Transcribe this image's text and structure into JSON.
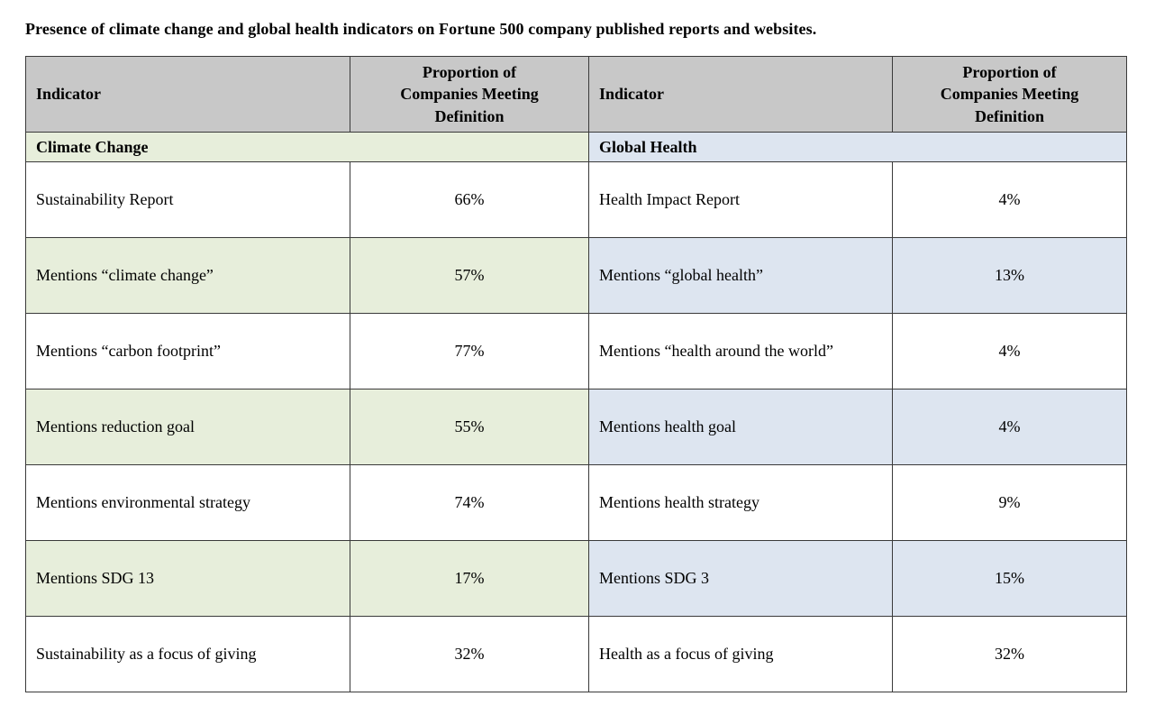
{
  "page_title": "Presence of climate change and global health indicators on Fortune 500 company published reports and websites.",
  "table": {
    "header": {
      "col1": "Indicator",
      "col2": "Proportion of Companies Meeting Definition",
      "col3": "Indicator",
      "col4": "Proportion of Companies Meeting Definition"
    },
    "section_left": "Climate Change",
    "section_right": "Global Health",
    "rows": [
      {
        "c1": "Sustainability Report",
        "c2": "66%",
        "c3": "Health Impact Report",
        "c4": "4%"
      },
      {
        "c1": "Mentions “climate change”",
        "c2": "57%",
        "c3": "Mentions “global health”",
        "c4": "13%"
      },
      {
        "c1": "Mentions “carbon footprint”",
        "c2": "77%",
        "c3": "Mentions “health around the world”",
        "c4": "4%"
      },
      {
        "c1": "Mentions reduction goal",
        "c2": "55%",
        "c3": "Mentions health goal",
        "c4": "4%"
      },
      {
        "c1": "Mentions environmental strategy",
        "c2": "74%",
        "c3": "Mentions health strategy",
        "c4": "9%"
      },
      {
        "c1": "Mentions SDG 13",
        "c2": "17%",
        "c3": "Mentions SDG 3",
        "c4": "15%"
      },
      {
        "c1": "Sustainability as a focus of giving",
        "c2": "32%",
        "c3": "Health as a focus of giving",
        "c4": "32%"
      }
    ]
  },
  "colors": {
    "header_bg": "#c8c8c8",
    "climate_bg": "#e7eedb",
    "health_bg": "#dde5f0",
    "border": "#3a3a3a"
  },
  "chart_data": {
    "type": "table",
    "title": "Presence of climate change and global health indicators on Fortune 500 company published reports and websites.",
    "columns": [
      "Indicator",
      "Proportion of Companies Meeting Definition",
      "Indicator",
      "Proportion of Companies Meeting Definition"
    ],
    "series": [
      {
        "name": "Climate Change",
        "categories": [
          "Sustainability Report",
          "Mentions “climate change”",
          "Mentions “carbon footprint”",
          "Mentions reduction goal",
          "Mentions environmental strategy",
          "Mentions SDG 13",
          "Sustainability as a focus of giving"
        ],
        "values": [
          66,
          57,
          77,
          55,
          74,
          17,
          32
        ]
      },
      {
        "name": "Global Health",
        "categories": [
          "Health Impact Report",
          "Mentions “global health”",
          "Mentions “health around the world”",
          "Mentions health goal",
          "Mentions health strategy",
          "Mentions SDG 3",
          "Health as a focus of giving"
        ],
        "values": [
          4,
          13,
          4,
          4,
          9,
          15,
          32
        ]
      }
    ],
    "unit": "%"
  }
}
